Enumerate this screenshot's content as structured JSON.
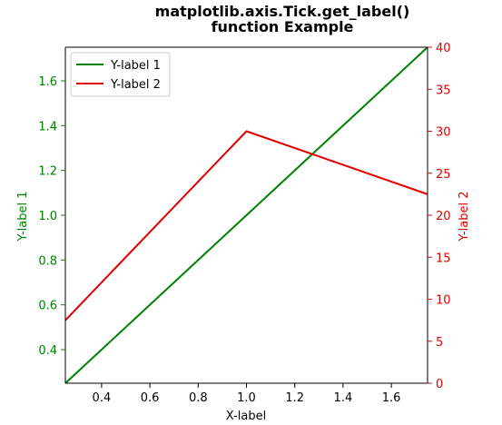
{
  "chart_data": {
    "type": "line",
    "title_lines": [
      "matplotlib.axis.Tick.get_label()",
      "function Example"
    ],
    "xlabel": "X-label",
    "ylabel_left": "Y-label 1",
    "ylabel_right": "Y-label 2",
    "xlim": [
      0.25,
      1.75
    ],
    "ylim_left": [
      0.25,
      1.75
    ],
    "ylim_right": [
      0,
      40
    ],
    "x_ticks": [
      "0.4",
      "0.6",
      "0.8",
      "1.0",
      "1.2",
      "1.4",
      "1.6"
    ],
    "y_left_ticks": [
      "0.4",
      "0.6",
      "0.8",
      "1.0",
      "1.2",
      "1.4",
      "1.6"
    ],
    "y_right_ticks": [
      "0",
      "5",
      "10",
      "15",
      "20",
      "25",
      "30",
      "35",
      "40"
    ],
    "grid": false,
    "legend_position": "upper-left",
    "series": [
      {
        "name": "Y-label 1",
        "axis": "left",
        "color": "#008000",
        "x": [
          0.25,
          1.75
        ],
        "y": [
          0.25,
          1.75
        ]
      },
      {
        "name": "Y-label 2",
        "axis": "right",
        "color": "#e00000",
        "x": [
          0.25,
          1.0,
          1.75
        ],
        "y": [
          7.5,
          30,
          22.5
        ]
      }
    ],
    "colors": {
      "left_axis": "#008000",
      "right_axis": "#e00000",
      "x_axis": "#000000"
    }
  }
}
